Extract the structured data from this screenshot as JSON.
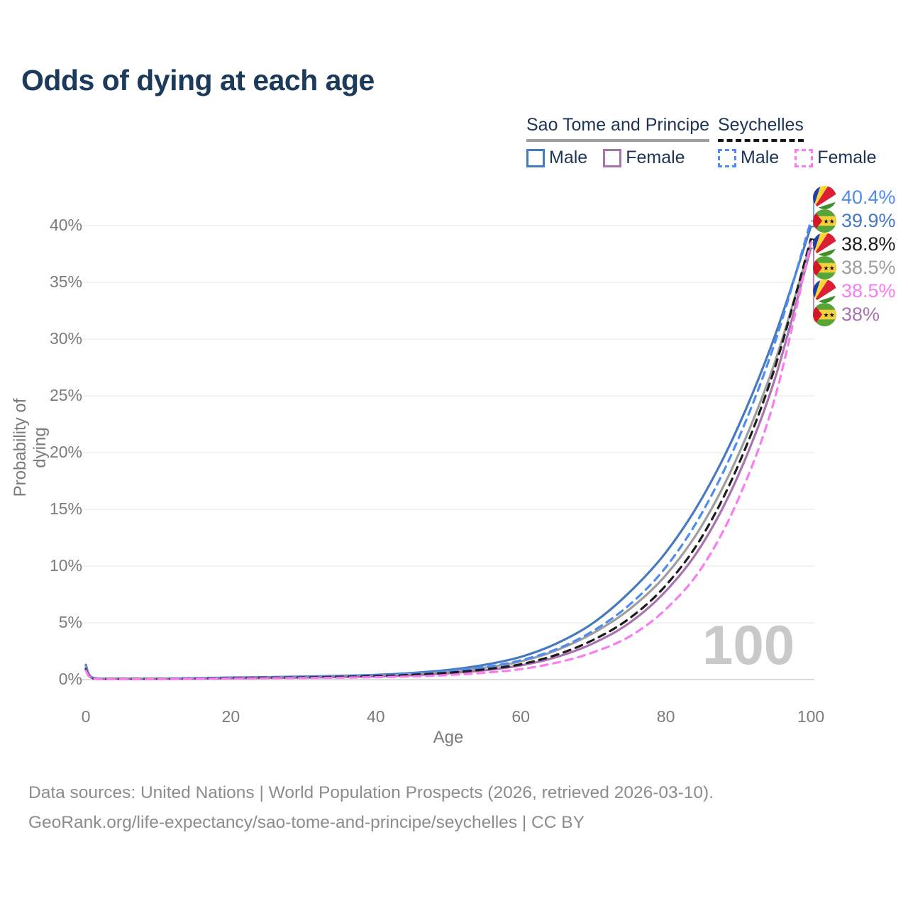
{
  "title": "Odds of dying at each age",
  "legend": {
    "groups": [
      {
        "id": "sao-tome-and-principe",
        "name": "Sao Tome and Principe",
        "underline_style": "solid",
        "underline_color": "#9e9e9e",
        "items": [
          {
            "label": "Male",
            "swatch_color": "#4679bd",
            "swatch_style": "solid"
          },
          {
            "label": "Female",
            "swatch_color": "#a873ae",
            "swatch_style": "solid"
          }
        ]
      },
      {
        "id": "seychelles",
        "name": "Seychelles",
        "underline_style": "dashed",
        "underline_color": "#161616",
        "items": [
          {
            "label": "Male",
            "swatch_color": "#4e8cf0",
            "swatch_style": "dashed"
          },
          {
            "label": "Female",
            "swatch_color": "#f97cf0",
            "swatch_style": "dashed"
          }
        ]
      }
    ]
  },
  "chart_data": {
    "type": "line",
    "title": "Odds of dying at each age",
    "xlabel": "Age",
    "ylabel": "Probability of dying",
    "x_ticks": [
      0,
      20,
      40,
      60,
      80,
      100
    ],
    "y_tick_labels": [
      "0%",
      "5%",
      "10%",
      "15%",
      "20%",
      "25%",
      "30%",
      "35%",
      "40%"
    ],
    "y_ticks_pct": [
      0,
      5,
      10,
      15,
      20,
      25,
      30,
      35,
      40
    ],
    "xlim": [
      0,
      100
    ],
    "ylim_pct": [
      0,
      42
    ],
    "grid": "horizontal-only",
    "legend_position": "top-right",
    "watermark": "100",
    "x": [
      0,
      1,
      5,
      10,
      15,
      20,
      25,
      30,
      35,
      40,
      45,
      50,
      55,
      60,
      65,
      70,
      75,
      80,
      85,
      90,
      95,
      100
    ],
    "series": [
      {
        "id": "st-male",
        "flag": "sao-tome",
        "legend_label": "Male",
        "color": "#4679bd",
        "dash": false,
        "end_label": "39.9%",
        "end_value_pct": 39.9,
        "label_row": 1,
        "values_pct": [
          1.3,
          0.15,
          0.08,
          0.08,
          0.12,
          0.18,
          0.22,
          0.27,
          0.33,
          0.42,
          0.58,
          0.85,
          1.3,
          2.0,
          3.2,
          5.0,
          7.7,
          11.2,
          16.0,
          22.3,
          30.2,
          39.9
        ]
      },
      {
        "id": "st-all",
        "flag": "sao-tome",
        "legend_label": "",
        "color": "#9e9e9e",
        "dash": false,
        "end_label": "38.5%",
        "end_value_pct": 38.5,
        "label_row": 3,
        "values_pct": [
          1.15,
          0.12,
          0.07,
          0.07,
          0.1,
          0.15,
          0.18,
          0.22,
          0.27,
          0.35,
          0.48,
          0.7,
          1.05,
          1.6,
          2.6,
          4.1,
          6.2,
          9.2,
          13.6,
          19.8,
          27.9,
          38.5
        ]
      },
      {
        "id": "st-female",
        "flag": "sao-tome",
        "legend_label": "Female",
        "color": "#a873ae",
        "dash": false,
        "end_label": "38%",
        "end_value_pct": 38.0,
        "label_row": 5,
        "values_pct": [
          1.0,
          0.1,
          0.06,
          0.06,
          0.08,
          0.12,
          0.15,
          0.18,
          0.22,
          0.28,
          0.38,
          0.55,
          0.82,
          1.25,
          2.0,
          3.2,
          5.0,
          7.8,
          11.9,
          18.0,
          26.4,
          38.0
        ]
      },
      {
        "id": "sey-male",
        "flag": "seychelles",
        "legend_label": "Male",
        "color": "#4e8cf0",
        "dash": true,
        "end_label": "40.4%",
        "end_value_pct": 40.4,
        "label_row": 0,
        "values_pct": [
          1.0,
          0.1,
          0.06,
          0.06,
          0.1,
          0.16,
          0.2,
          0.24,
          0.3,
          0.38,
          0.52,
          0.75,
          1.1,
          1.7,
          2.7,
          4.3,
          6.6,
          9.9,
          14.7,
          21.2,
          29.6,
          40.4
        ]
      },
      {
        "id": "sey-all",
        "flag": "seychelles",
        "legend_label": "",
        "color": "#1c1c1c",
        "dash": true,
        "end_label": "38.8%",
        "end_value_pct": 38.8,
        "label_row": 2,
        "values_pct": [
          0.9,
          0.09,
          0.05,
          0.05,
          0.08,
          0.13,
          0.16,
          0.19,
          0.24,
          0.3,
          0.42,
          0.6,
          0.9,
          1.35,
          2.2,
          3.5,
          5.4,
          8.3,
          12.6,
          18.9,
          27.4,
          38.8
        ]
      },
      {
        "id": "sey-female",
        "flag": "seychelles",
        "legend_label": "Female",
        "color": "#f97cf0",
        "dash": true,
        "end_label": "38.5%",
        "end_value_pct": 38.5,
        "label_row": 4,
        "values_pct": [
          0.8,
          0.08,
          0.04,
          0.04,
          0.06,
          0.09,
          0.11,
          0.14,
          0.17,
          0.21,
          0.28,
          0.4,
          0.6,
          0.92,
          1.5,
          2.4,
          3.8,
          6.2,
          9.9,
          15.9,
          24.7,
          38.5
        ]
      }
    ]
  },
  "footer": {
    "line1": "Data sources: United Nations | World Population Prospects (2026, retrieved 2026-03-10).",
    "line2": "GeoRank.org/life-expectancy/sao-tome-and-principe/seychelles | CC BY"
  }
}
